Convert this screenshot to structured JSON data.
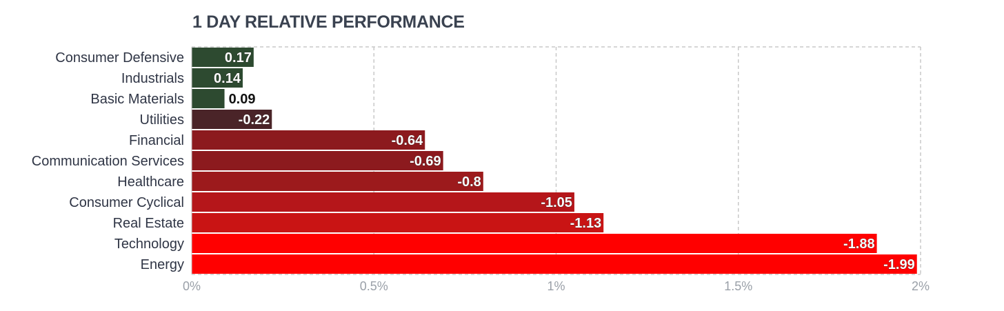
{
  "chart_data": {
    "type": "bar",
    "orientation": "horizontal",
    "title": "1 DAY RELATIVE PERFORMANCE",
    "categories": [
      "Consumer Defensive",
      "Industrials",
      "Basic Materials",
      "Utilities",
      "Financial",
      "Communication Services",
      "Healthcare",
      "Consumer Cyclical",
      "Real Estate",
      "Technology",
      "Energy"
    ],
    "values": [
      0.17,
      0.14,
      0.09,
      -0.22,
      -0.64,
      -0.69,
      -0.8,
      -1.05,
      -1.13,
      -1.88,
      -1.99
    ],
    "value_labels": [
      "0.17",
      "0.14",
      "0.09",
      "-0.22",
      "-0.64",
      "-0.69",
      "-0.8",
      "-1.05",
      "-1.13",
      "-1.88",
      "-1.99"
    ],
    "bar_colors": [
      "#2d4a30",
      "#2d4a30",
      "#2d4a30",
      "#4a2428",
      "#8c1a1e",
      "#8c1a1e",
      "#9c1a1c",
      "#b5161a",
      "#c91414",
      "#ff0000",
      "#ff0000"
    ],
    "xlim": [
      0,
      2
    ],
    "x_ticks": [
      0,
      0.5,
      1,
      1.5,
      2
    ],
    "x_tick_labels": [
      "0%",
      "0.5%",
      "1%",
      "1.5%",
      "2%"
    ],
    "bar_length": "absolute value",
    "grid": true,
    "legend": "none",
    "xlabel": "",
    "ylabel": ""
  }
}
